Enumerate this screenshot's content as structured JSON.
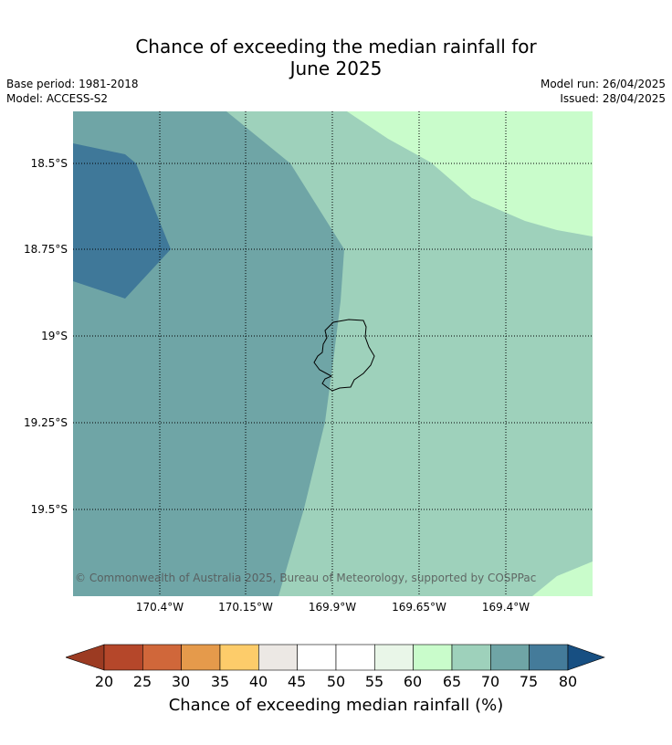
{
  "title_line1": "Chance of exceeding the median rainfall for",
  "title_line2": "June 2025",
  "base_period": "Base period: 1981-2018",
  "model": "Model: ACCESS-S2",
  "model_run": "Model run: 26/04/2025",
  "issued": "Issued: 28/04/2025",
  "latitude_labels": [
    "18.5°S",
    "18.75°S",
    "19°S",
    "19.25°S",
    "19.5°S"
  ],
  "longitude_labels": [
    "170.4°W",
    "170.15°W",
    "169.9°W",
    "169.65°W",
    "169.4°W"
  ],
  "copyright": "© Commonwealth of Australia 2025, Bureau of Meteorology, supported by COSPPac",
  "colorbar": {
    "ticks": [
      "20",
      "25",
      "30",
      "35",
      "40",
      "45",
      "50",
      "55",
      "60",
      "65",
      "70",
      "75",
      "80"
    ],
    "colors": [
      "#b5472a",
      "#d0673a",
      "#e59a4b",
      "#fdcc6a",
      "#ece8e4",
      "#ffffff",
      "#ffffff",
      "#e9f6e8",
      "#c9fccb",
      "#9ed1bb",
      "#6fa5a6",
      "#447b9a"
    ],
    "under_color": "#9c3b22",
    "over_color": "#174f82",
    "label": "Chance of exceeding median rainfall (%)"
  },
  "map_colors": {
    "band_60_65": "#c9fccb",
    "band_65_70": "#9ed1bb",
    "band_70_75": "#6fa5a6",
    "band_75_80": "#3f7899"
  }
}
